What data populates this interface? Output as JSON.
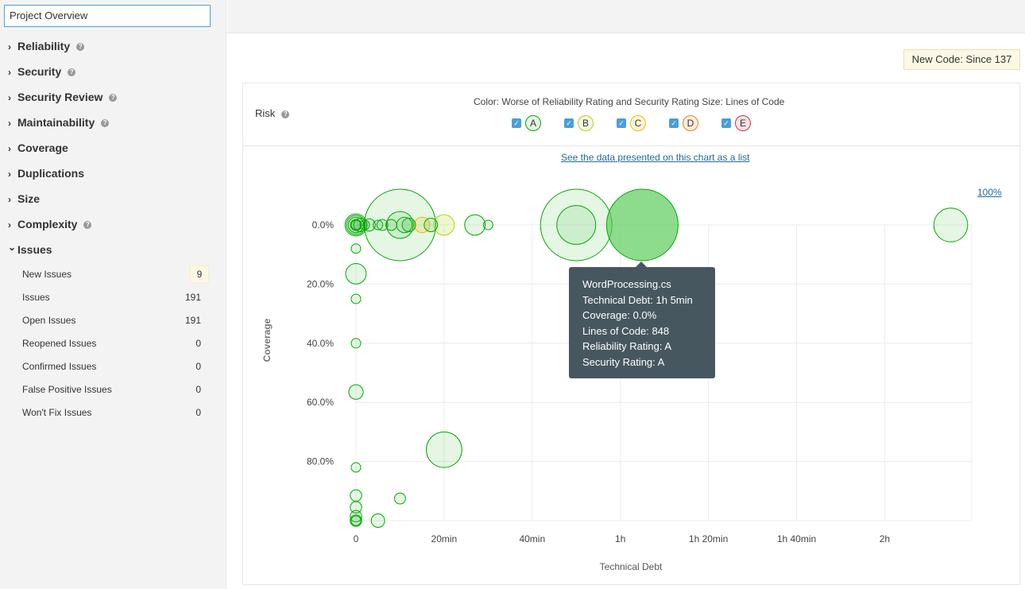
{
  "sidebar": {
    "title": "Project Overview",
    "categories": [
      {
        "label": "Reliability",
        "help": true,
        "expanded": false
      },
      {
        "label": "Security",
        "help": true,
        "expanded": false
      },
      {
        "label": "Security Review",
        "help": true,
        "expanded": false
      },
      {
        "label": "Maintainability",
        "help": true,
        "expanded": false
      },
      {
        "label": "Coverage",
        "help": false,
        "expanded": false
      },
      {
        "label": "Duplications",
        "help": false,
        "expanded": false
      },
      {
        "label": "Size",
        "help": false,
        "expanded": false
      },
      {
        "label": "Complexity",
        "help": true,
        "expanded": false
      },
      {
        "label": "Issues",
        "help": false,
        "expanded": true
      }
    ],
    "issues": [
      {
        "label": "New Issues",
        "count": "9",
        "highlight": true
      },
      {
        "label": "Issues",
        "count": "191"
      },
      {
        "label": "Open Issues",
        "count": "191"
      },
      {
        "label": "Reopened Issues",
        "count": "0"
      },
      {
        "label": "Confirmed Issues",
        "count": "0"
      },
      {
        "label": "False Positive Issues",
        "count": "0"
      },
      {
        "label": "Won't Fix Issues",
        "count": "0"
      }
    ]
  },
  "new_code": "New Code: Since 137",
  "panel": {
    "title": "Risk",
    "legend_text": "Color: Worse of Reliability Rating and Security Rating  Size: Lines of Code",
    "ratings": [
      {
        "label": "A",
        "checked": true,
        "color": "#00aa00",
        "fill": "#e6f5e6"
      },
      {
        "label": "B",
        "checked": true,
        "color": "#b0d513",
        "fill": "#f4f9e0"
      },
      {
        "label": "C",
        "checked": true,
        "color": "#eabe06",
        "fill": "#fcf5da"
      },
      {
        "label": "D",
        "checked": true,
        "color": "#ed7d20",
        "fill": "#fdecde"
      },
      {
        "label": "E",
        "checked": true,
        "color": "#d4333f",
        "fill": "#fae3e5"
      }
    ],
    "list_link": "See the data presented on this chart as a list",
    "zoom_label": "100%"
  },
  "chart_data": {
    "type": "scatter",
    "xlabel": "Technical Debt",
    "ylabel": "Coverage",
    "x_unit": "minutes",
    "y_unit": "percent",
    "xlim": [
      0,
      140
    ],
    "ylim": [
      0,
      100
    ],
    "x_ticks": [
      {
        "value": 0,
        "label": "0"
      },
      {
        "value": 20,
        "label": "20min"
      },
      {
        "value": 40,
        "label": "40min"
      },
      {
        "value": 60,
        "label": "1h"
      },
      {
        "value": 80,
        "label": "1h 20min"
      },
      {
        "value": 100,
        "label": "1h 40min"
      },
      {
        "value": 120,
        "label": "2h"
      }
    ],
    "y_ticks": [
      {
        "value": 0,
        "label": "0.0%"
      },
      {
        "value": 20,
        "label": "20.0%"
      },
      {
        "value": 40,
        "label": "40.0%"
      },
      {
        "value": 60,
        "label": "60.0%"
      },
      {
        "value": 80,
        "label": "80.0%"
      }
    ],
    "points": [
      {
        "x": 0,
        "y": 0,
        "loc": 80,
        "rating": "A"
      },
      {
        "x": 0,
        "y": 0,
        "loc": 60,
        "rating": "A"
      },
      {
        "x": 0,
        "y": 0,
        "loc": 40,
        "rating": "A"
      },
      {
        "x": 0,
        "y": 0,
        "loc": 20,
        "rating": "A"
      },
      {
        "x": 0,
        "y": 0,
        "loc": 8,
        "rating": "A"
      },
      {
        "x": 1,
        "y": 0,
        "loc": 30,
        "rating": "A"
      },
      {
        "x": 2,
        "y": 0,
        "loc": 15,
        "rating": "A"
      },
      {
        "x": 3,
        "y": 0,
        "loc": 25,
        "rating": "A"
      },
      {
        "x": 5,
        "y": 0,
        "loc": 15,
        "rating": "A"
      },
      {
        "x": 6,
        "y": 0,
        "loc": 20,
        "rating": "A"
      },
      {
        "x": 8,
        "y": 0,
        "loc": 20,
        "rating": "A"
      },
      {
        "x": 10,
        "y": 0,
        "loc": 848,
        "rating": "A"
      },
      {
        "x": 10,
        "y": 0,
        "loc": 120,
        "rating": "A"
      },
      {
        "x": 11,
        "y": 0,
        "loc": 40,
        "rating": "A"
      },
      {
        "x": 12,
        "y": 0,
        "loc": 30,
        "rating": "A"
      },
      {
        "x": 15,
        "y": 0,
        "loc": 40,
        "rating": "C"
      },
      {
        "x": 17,
        "y": 0,
        "loc": 30,
        "rating": "A"
      },
      {
        "x": 20,
        "y": 0,
        "loc": 70,
        "rating": "B"
      },
      {
        "x": 27,
        "y": 0,
        "loc": 70,
        "rating": "A"
      },
      {
        "x": 30,
        "y": 0,
        "loc": 12,
        "rating": "A"
      },
      {
        "x": 50,
        "y": 0,
        "loc": 848,
        "rating": "A"
      },
      {
        "x": 50,
        "y": 0,
        "loc": 250,
        "rating": "A"
      },
      {
        "x": 65,
        "y": 0,
        "loc": 848,
        "rating": "A",
        "name": "WordProcessing.cs",
        "highlighted": true
      },
      {
        "x": 135,
        "y": 0,
        "loc": 190,
        "rating": "A"
      },
      {
        "x": 0,
        "y": 8,
        "loc": 12,
        "rating": "A"
      },
      {
        "x": 0,
        "y": 16.5,
        "loc": 70,
        "rating": "A"
      },
      {
        "x": 0,
        "y": 25,
        "loc": 12,
        "rating": "A"
      },
      {
        "x": 0,
        "y": 40,
        "loc": 12,
        "rating": "A"
      },
      {
        "x": 0,
        "y": 56.5,
        "loc": 35,
        "rating": "A"
      },
      {
        "x": 20,
        "y": 76,
        "loc": 210,
        "rating": "A"
      },
      {
        "x": 0,
        "y": 82,
        "loc": 12,
        "rating": "A"
      },
      {
        "x": 0,
        "y": 91.5,
        "loc": 22,
        "rating": "A"
      },
      {
        "x": 10,
        "y": 92.5,
        "loc": 20,
        "rating": "A"
      },
      {
        "x": 0,
        "y": 95.5,
        "loc": 22,
        "rating": "A"
      },
      {
        "x": 0,
        "y": 98.5,
        "loc": 22,
        "rating": "A"
      },
      {
        "x": 0,
        "y": 100,
        "loc": 22,
        "rating": "A"
      },
      {
        "x": 0,
        "y": 100,
        "loc": 12,
        "rating": "A"
      },
      {
        "x": 5,
        "y": 100,
        "loc": 30,
        "rating": "A"
      }
    ]
  },
  "tooltip": {
    "lines": [
      "WordProcessing.cs",
      "Technical Debt: 1h 5min",
      "Coverage: 0.0%",
      "Lines of Code: 848",
      "Reliability Rating: A",
      "Security Rating: A"
    ]
  }
}
